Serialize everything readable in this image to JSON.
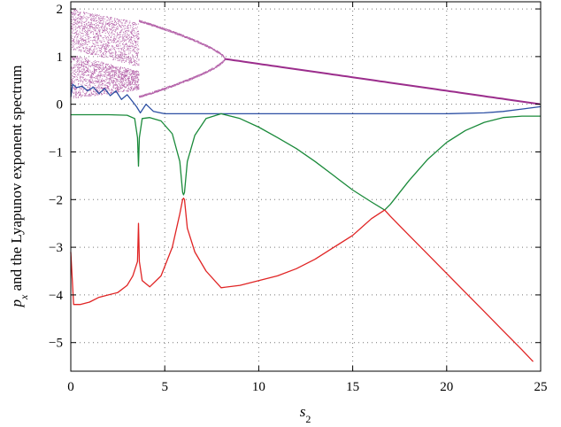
{
  "chart_data": {
    "type": "line",
    "xlabel_symbol": "s",
    "xlabel_subscript": "2",
    "ylabel_symbol": "p",
    "ylabel_subscript": "x",
    "ylabel_rest": " and the Lyapunov exponent spectrum",
    "xlim": [
      0,
      25
    ],
    "ylim": [
      -5.6,
      2.15
    ],
    "xticks": [
      "0",
      "5",
      "10",
      "15",
      "20",
      "25"
    ],
    "xtick_values": [
      0,
      5,
      10,
      15,
      20,
      25
    ],
    "yticks": [
      "2",
      "1",
      "0",
      "−1",
      "−2",
      "−3",
      "−4",
      "−5"
    ],
    "ytick_values": [
      2,
      1,
      0,
      -1,
      -2,
      -3,
      -4,
      -5
    ],
    "grid": true,
    "grid_style": "dotted",
    "colors": {
      "bifurcation": "#9b2d8c",
      "lyap1": "#2c4fa3",
      "lyap2": "#1a8a3a",
      "lyap3": "#e02424",
      "axis": "#000000",
      "grid": "#777777"
    },
    "series": [
      {
        "color_key": "lyap1",
        "x": [
          0,
          0.1,
          0.3,
          0.6,
          0.9,
          1.2,
          1.5,
          1.8,
          2.1,
          2.4,
          2.7,
          3.0,
          3.3,
          3.5,
          3.7,
          4.0,
          4.4,
          5.0,
          6.0,
          8.0,
          12,
          16,
          20,
          22,
          23,
          24,
          25
        ],
        "y": [
          0.15,
          0.42,
          0.35,
          0.38,
          0.28,
          0.36,
          0.22,
          0.33,
          0.18,
          0.28,
          0.1,
          0.2,
          0.05,
          -0.05,
          -0.18,
          0.0,
          -0.15,
          -0.2,
          -0.2,
          -0.2,
          -0.2,
          -0.2,
          -0.2,
          -0.18,
          -0.15,
          -0.1,
          -0.05
        ]
      },
      {
        "color_key": "lyap2",
        "x": [
          0,
          1,
          2,
          3,
          3.4,
          3.55,
          3.6,
          3.65,
          3.8,
          4.2,
          4.8,
          5.4,
          5.8,
          5.95,
          6.0,
          6.05,
          6.2,
          6.6,
          7.2,
          8.0,
          9.0,
          10,
          11,
          12,
          13,
          14,
          15,
          16,
          16.7,
          17,
          18,
          19,
          20,
          21,
          22,
          23,
          24,
          25
        ],
        "y": [
          -0.22,
          -0.22,
          -0.22,
          -0.23,
          -0.3,
          -0.7,
          -1.3,
          -0.7,
          -0.3,
          -0.28,
          -0.35,
          -0.62,
          -1.2,
          -1.85,
          -1.9,
          -1.85,
          -1.2,
          -0.65,
          -0.3,
          -0.2,
          -0.3,
          -0.48,
          -0.7,
          -0.93,
          -1.2,
          -1.5,
          -1.8,
          -2.05,
          -2.22,
          -2.1,
          -1.6,
          -1.15,
          -0.8,
          -0.55,
          -0.38,
          -0.28,
          -0.25,
          -0.25
        ]
      },
      {
        "color_key": "lyap3",
        "x": [
          0,
          0.15,
          0.5,
          1.0,
          1.5,
          2.0,
          2.5,
          3.0,
          3.3,
          3.55,
          3.6,
          3.65,
          3.8,
          4.2,
          4.8,
          5.4,
          5.8,
          5.95,
          6.0,
          6.05,
          6.2,
          6.6,
          7.2,
          8.0,
          9,
          10,
          11,
          12,
          13,
          14,
          15,
          16,
          16.7,
          17,
          18,
          19,
          20,
          21,
          22,
          23,
          24,
          24.6
        ],
        "y": [
          -3.1,
          -4.2,
          -4.2,
          -4.15,
          -4.05,
          -4.0,
          -3.95,
          -3.8,
          -3.6,
          -3.3,
          -2.5,
          -3.3,
          -3.7,
          -3.83,
          -3.6,
          -3.0,
          -2.3,
          -2.0,
          -1.97,
          -2.0,
          -2.6,
          -3.1,
          -3.5,
          -3.85,
          -3.8,
          -3.7,
          -3.6,
          -3.45,
          -3.25,
          -3.0,
          -2.75,
          -2.4,
          -2.22,
          -2.35,
          -2.75,
          -3.15,
          -3.55,
          -3.95,
          -4.35,
          -4.75,
          -5.15,
          -5.4
        ]
      }
    ]
  }
}
